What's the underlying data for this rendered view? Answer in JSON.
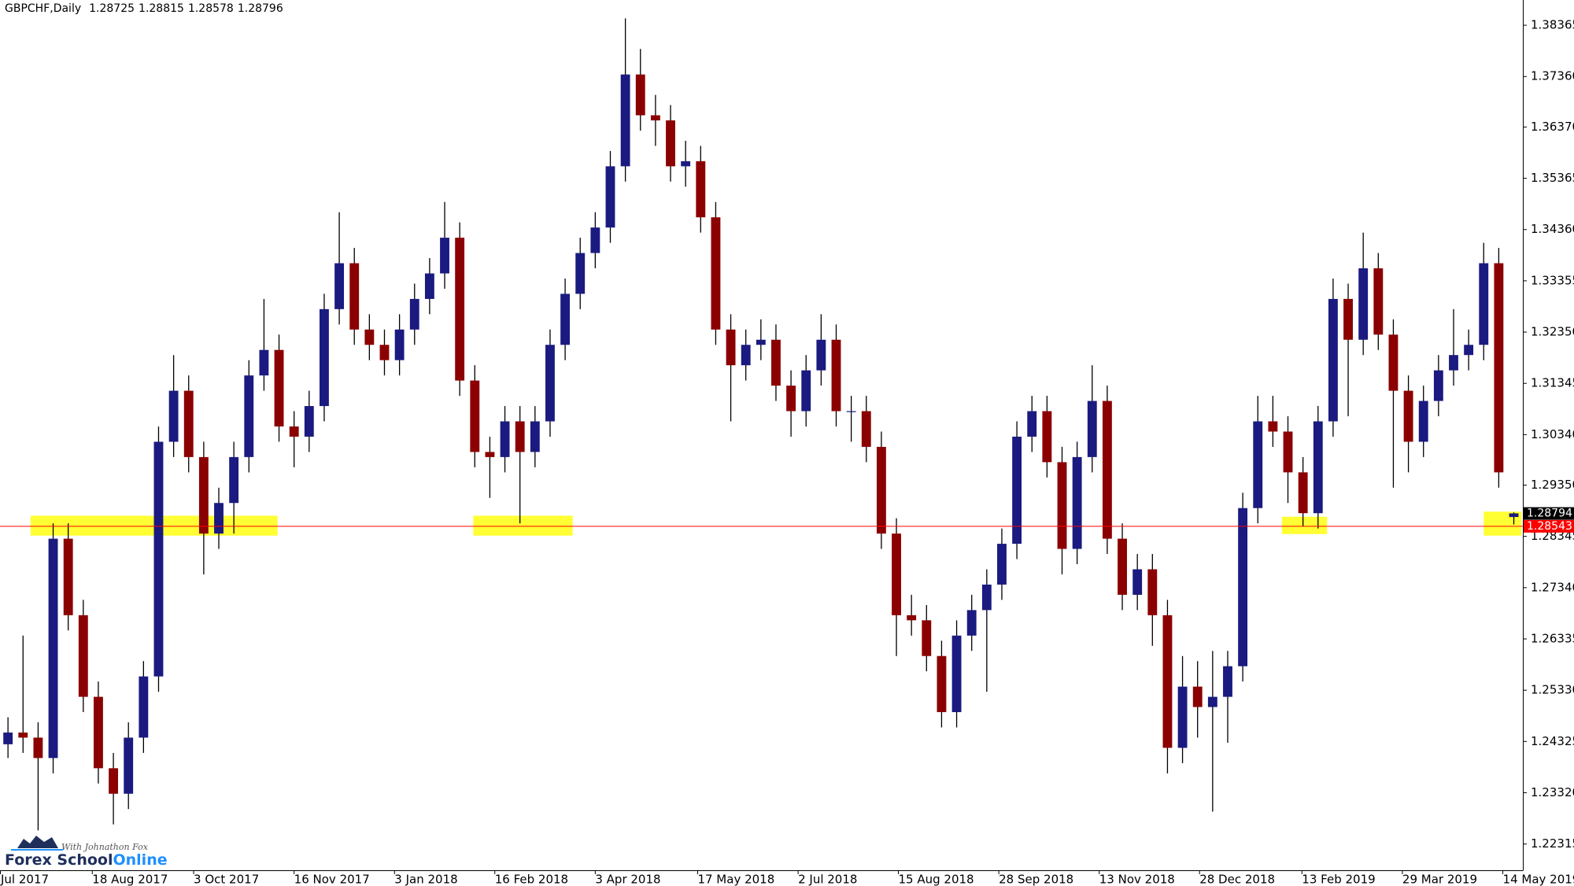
{
  "chart_data": {
    "type": "candlestick",
    "symbol": "GBPCHF,Daily",
    "open": [
      1.2427,
      1.245,
      1.244,
      1.24,
      1.283,
      1.268,
      1.252,
      1.238,
      1.233,
      1.244,
      1.256,
      1.302,
      1.312,
      1.299,
      1.284,
      1.29,
      1.299,
      1.315,
      1.32,
      1.305,
      1.303,
      1.309,
      1.328,
      1.337,
      1.324,
      1.321,
      1.318,
      1.324,
      1.33,
      1.335,
      1.342,
      1.314,
      1.3,
      1.299,
      1.306,
      1.3,
      1.306,
      1.321,
      1.331,
      1.339,
      1.344,
      1.356,
      1.374,
      1.366,
      1.365,
      1.356,
      1.357,
      1.346,
      1.324,
      1.317,
      1.321,
      1.322,
      1.313,
      1.308,
      1.316,
      1.322,
      1.308,
      1.308,
      1.301,
      1.284,
      1.268,
      1.267,
      1.26,
      1.249,
      1.264,
      1.269,
      1.274,
      1.282,
      1.303,
      1.308,
      1.298,
      1.281,
      1.299,
      1.31,
      1.283,
      1.272,
      1.277,
      1.268,
      1.242,
      1.254,
      1.25,
      1.252,
      1.258,
      1.289,
      1.306,
      1.304,
      1.296,
      1.288,
      1.306,
      1.33,
      1.322,
      1.336,
      1.323,
      1.312,
      1.302,
      1.31,
      1.316,
      1.319,
      1.321,
      1.337,
      1.28725
    ],
    "high": [
      1.248,
      1.264,
      1.247,
      1.286,
      1.286,
      1.271,
      1.255,
      1.241,
      1.247,
      1.259,
      1.305,
      1.319,
      1.315,
      1.302,
      1.293,
      1.302,
      1.318,
      1.33,
      1.323,
      1.308,
      1.312,
      1.331,
      1.347,
      1.34,
      1.327,
      1.324,
      1.327,
      1.333,
      1.338,
      1.349,
      1.345,
      1.317,
      1.303,
      1.309,
      1.309,
      1.309,
      1.324,
      1.334,
      1.342,
      1.347,
      1.359,
      1.385,
      1.379,
      1.37,
      1.368,
      1.361,
      1.36,
      1.349,
      1.327,
      1.324,
      1.326,
      1.325,
      1.316,
      1.319,
      1.327,
      1.325,
      1.311,
      1.311,
      1.304,
      1.287,
      1.272,
      1.27,
      1.263,
      1.267,
      1.272,
      1.277,
      1.285,
      1.306,
      1.311,
      1.311,
      1.301,
      1.302,
      1.317,
      1.313,
      1.286,
      1.28,
      1.28,
      1.271,
      1.26,
      1.259,
      1.261,
      1.261,
      1.292,
      1.311,
      1.311,
      1.307,
      1.299,
      1.309,
      1.334,
      1.333,
      1.343,
      1.339,
      1.326,
      1.315,
      1.313,
      1.319,
      1.328,
      1.324,
      1.341,
      1.34,
      1.28815
    ],
    "low": [
      1.24,
      1.241,
      1.2258,
      1.237,
      1.265,
      1.249,
      1.235,
      1.227,
      1.23,
      1.241,
      1.253,
      1.299,
      1.296,
      1.276,
      1.281,
      1.284,
      1.296,
      1.312,
      1.302,
      1.297,
      1.3,
      1.306,
      1.325,
      1.321,
      1.318,
      1.315,
      1.315,
      1.321,
      1.327,
      1.332,
      1.311,
      1.297,
      1.291,
      1.296,
      1.286,
      1.297,
      1.303,
      1.318,
      1.328,
      1.336,
      1.341,
      1.353,
      1.363,
      1.36,
      1.353,
      1.352,
      1.343,
      1.321,
      1.306,
      1.314,
      1.318,
      1.31,
      1.303,
      1.305,
      1.313,
      1.305,
      1.302,
      1.298,
      1.281,
      1.26,
      1.264,
      1.257,
      1.246,
      1.246,
      1.261,
      1.253,
      1.271,
      1.279,
      1.3,
      1.295,
      1.276,
      1.278,
      1.296,
      1.28,
      1.269,
      1.269,
      1.262,
      1.237,
      1.239,
      1.244,
      1.2295,
      1.243,
      1.255,
      1.286,
      1.301,
      1.29,
      1.2854,
      1.285,
      1.303,
      1.307,
      1.319,
      1.32,
      1.293,
      1.296,
      1.299,
      1.307,
      1.313,
      1.316,
      1.318,
      1.293,
      1.28578
    ],
    "close": [
      1.245,
      1.244,
      1.24,
      1.283,
      1.268,
      1.252,
      1.238,
      1.233,
      1.244,
      1.256,
      1.302,
      1.312,
      1.299,
      1.284,
      1.29,
      1.299,
      1.315,
      1.32,
      1.305,
      1.303,
      1.309,
      1.328,
      1.337,
      1.324,
      1.321,
      1.318,
      1.324,
      1.33,
      1.335,
      1.342,
      1.314,
      1.3,
      1.299,
      1.306,
      1.3,
      1.306,
      1.321,
      1.331,
      1.339,
      1.344,
      1.356,
      1.374,
      1.366,
      1.365,
      1.356,
      1.357,
      1.346,
      1.324,
      1.317,
      1.321,
      1.322,
      1.313,
      1.308,
      1.316,
      1.322,
      1.308,
      1.308,
      1.301,
      1.284,
      1.268,
      1.267,
      1.26,
      1.249,
      1.264,
      1.269,
      1.274,
      1.282,
      1.303,
      1.308,
      1.298,
      1.281,
      1.299,
      1.31,
      1.283,
      1.272,
      1.277,
      1.268,
      1.242,
      1.254,
      1.25,
      1.252,
      1.258,
      1.289,
      1.306,
      1.304,
      1.296,
      1.288,
      1.306,
      1.33,
      1.322,
      1.336,
      1.323,
      1.312,
      1.302,
      1.31,
      1.316,
      1.319,
      1.321,
      1.337,
      1.296,
      1.28796
    ],
    "colors": {
      "up": "#1a1a80",
      "down": "#8b0000",
      "wick": "#000000"
    },
    "ylim": [
      1.218,
      1.3886
    ],
    "yticks": [
      1.38365,
      {
        "value": 1.3736,
        "label": "1.37360"
      },
      {
        "value": 1.3637,
        "label": "1.36370"
      },
      1.35365,
      {
        "value": 1.3436,
        "label": "1.34360"
      },
      1.33355,
      {
        "value": 1.3235,
        "label": "1.32350"
      },
      1.31345,
      {
        "value": 1.3034,
        "label": "1.30340"
      },
      {
        "value": 1.2935,
        "label": "1.29350"
      },
      1.28345,
      {
        "value": 1.2734,
        "label": "1.27340"
      },
      1.26335,
      {
        "value": 1.2533,
        "label": "1.25330"
      },
      1.24325,
      {
        "value": 1.2332,
        "label": "1.23320"
      },
      1.22315
    ],
    "xlim": [
      -0.53,
      100.6
    ],
    "xticks": [
      {
        "value": -0.53,
        "label": "Jul 2017"
      },
      {
        "value": 5.6,
        "label": "18 Aug 2017"
      },
      {
        "value": 12.33,
        "label": "3 Oct 2017"
      },
      {
        "value": 19,
        "label": "16 Nov 2017"
      },
      {
        "value": 25.67,
        "label": "3 Jan 2018"
      },
      {
        "value": 32.33,
        "label": "16 Feb 2018"
      },
      {
        "value": 39,
        "label": "3 Apr 2018"
      },
      {
        "value": 45.8,
        "label": "17 May 2018"
      },
      {
        "value": 52.47,
        "label": "2 Jul 2018"
      },
      {
        "value": 59.13,
        "label": "15 Aug 2018"
      },
      {
        "value": 65.8,
        "label": "28 Sep 2018"
      },
      {
        "value": 72.47,
        "label": "13 Nov 2018"
      },
      {
        "value": 79.13,
        "label": "28 Dec 2018"
      },
      {
        "value": 85.93,
        "label": "13 Feb 2019"
      },
      {
        "value": 92.6,
        "label": "29 Mar 2019"
      },
      {
        "value": 99.27,
        "label": "14 May 2019"
      }
    ],
    "price_line": {
      "value": 1.28543,
      "color": "#ff0000"
    },
    "bid": 1.28794,
    "zone_color": "#ffff33",
    "zones": [
      {
        "start": 1.5,
        "end": 17.9,
        "low": 1.2836,
        "high": 1.2875
      },
      {
        "start": 30.9,
        "end": 37.5,
        "low": 1.2836,
        "high": 1.2875
      },
      {
        "start": 84.6,
        "end": 87.6,
        "low": 1.2839,
        "high": 1.2873
      },
      {
        "start": 98.0,
        "end": 100.5,
        "low": 1.2836,
        "high": 1.2883
      }
    ]
  },
  "logo": {
    "brand": "Forex School",
    "brand_accent": "Online",
    "tagline": "With Johnathon Fox"
  }
}
